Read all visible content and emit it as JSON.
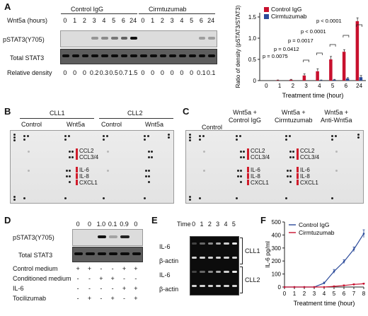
{
  "panel_A": {
    "letter": "A",
    "groups": [
      "Control IgG",
      "Cirmtuzumab"
    ],
    "wnt_label": "Wnt5a (hours)",
    "timepoints": [
      "0",
      "1",
      "2",
      "3",
      "4",
      "5",
      "6",
      "24",
      "0",
      "1",
      "2",
      "3",
      "4",
      "5",
      "6",
      "24"
    ],
    "rows": [
      "pSTAT3(Y705)",
      "Total STAT3"
    ],
    "density_label": "Relative density",
    "densities": [
      "0",
      "0",
      "0",
      "0.2",
      "0.3",
      "0.5",
      "0.7",
      "1.5",
      "0",
      "0",
      "0",
      "0",
      "0",
      "0",
      "0.1",
      "0.1"
    ]
  },
  "panel_A_chart": {
    "chart_data": {
      "type": "bar",
      "categories": [
        "0",
        "1",
        "2",
        "3",
        "4",
        "5",
        "6",
        "24"
      ],
      "series": [
        {
          "name": "Control IgG",
          "color": "#c8102e",
          "values": [
            0,
            0.01,
            0.02,
            0.12,
            0.22,
            0.5,
            0.68,
            1.4
          ],
          "errors": [
            0,
            0.005,
            0.01,
            0.04,
            0.06,
            0.07,
            0.05,
            0.08
          ]
        },
        {
          "name": "Cirmtuzumab",
          "color": "#2b4a9a",
          "values": [
            0,
            0,
            0,
            0,
            0.01,
            0.02,
            0.05,
            0.08
          ],
          "errors": [
            0,
            0,
            0,
            0,
            0.005,
            0.01,
            0.02,
            0.04
          ]
        }
      ],
      "ylabel": "Ratio of density (pSTAT3/STAT3)",
      "xlabel": "Treatment time (hour)",
      "yticks": [
        "0",
        "0.5",
        "1.0",
        "1.5"
      ],
      "ylim": [
        0,
        1.6
      ],
      "annotations": [
        "p = 0.0075",
        "p = 0.0412",
        "p = 0.0017",
        "p < 0.0001",
        "p < 0.0001"
      ]
    }
  },
  "panel_B": {
    "letter": "B",
    "samples": [
      "CLL1",
      "CLL2"
    ],
    "conditions": [
      "Control",
      "Wnt5a",
      "Control",
      "Wnt5a"
    ],
    "cytokines_top": [
      "CCL2",
      "CCL3/4"
    ],
    "cytokines_bottom": [
      "IL-6",
      "IL-8",
      "CXCL1"
    ]
  },
  "panel_C": {
    "letter": "C",
    "conditions": [
      "Control",
      "Wnt5a +\nControl IgG",
      "Wnt5a +\nCirmtuzumab",
      "Wnt5a +\nAnti-Wnt5a"
    ],
    "cytokines_top": [
      "CCL2",
      "CCL3/4"
    ],
    "cytokines_bottom": [
      "IL-6",
      "IL-8",
      "CXCL1"
    ]
  },
  "panel_D": {
    "letter": "D",
    "densities": [
      "0",
      "0",
      "1.0",
      "0.1",
      "0.9",
      "0"
    ],
    "rows": [
      "pSTAT3(Y705)",
      "Total STAT3"
    ],
    "conditions": [
      {
        "label": "Control medium",
        "signs": [
          "+",
          "+",
          "-",
          "-",
          "+",
          "+"
        ]
      },
      {
        "label": "Conditioned medium",
        "signs": [
          "-",
          "-",
          "+",
          "+",
          "-",
          "-"
        ]
      },
      {
        "label": "IL-6",
        "signs": [
          "-",
          "-",
          "-",
          "-",
          "+",
          "+"
        ]
      },
      {
        "label": "Tocilizumab",
        "signs": [
          "-",
          "+",
          "-",
          "+",
          "-",
          "+"
        ]
      }
    ]
  },
  "panel_E": {
    "letter": "E",
    "time_label": "Time",
    "times": [
      "0",
      "1",
      "2",
      "3",
      "4",
      "5"
    ],
    "rows": [
      "IL-6",
      "β-actin",
      "IL-6",
      "β-actin"
    ],
    "samples": [
      "CLL1",
      "CLL2"
    ]
  },
  "panel_F_chart": {
    "letter": "F",
    "chart_data": {
      "type": "line",
      "x": [
        0,
        1,
        2,
        3,
        4,
        5,
        6,
        7,
        8
      ],
      "series": [
        {
          "name": "Control IgG",
          "color": "#2b4a9a",
          "values": [
            0,
            0,
            0,
            0,
            30,
            120,
            195,
            290,
            410
          ],
          "errors": [
            0,
            0,
            0,
            0,
            8,
            15,
            15,
            18,
            30
          ]
        },
        {
          "name": "Cirmtuzumab",
          "color": "#c8102e",
          "values": [
            0,
            0,
            0,
            0,
            0,
            5,
            12,
            20,
            25
          ],
          "errors": [
            0,
            0,
            0,
            0,
            0,
            3,
            4,
            5,
            5
          ]
        }
      ],
      "xlabel": "Treatment time (hour)",
      "ylabel": "IL-6 pg/ml",
      "yticks": [
        "0",
        "100",
        "200",
        "300",
        "400",
        "500"
      ],
      "xticks": [
        "0",
        "1",
        "2",
        "3",
        "4",
        "5",
        "6",
        "7",
        "8"
      ],
      "ylim": [
        0,
        500
      ],
      "xlim": [
        0,
        8
      ]
    }
  }
}
